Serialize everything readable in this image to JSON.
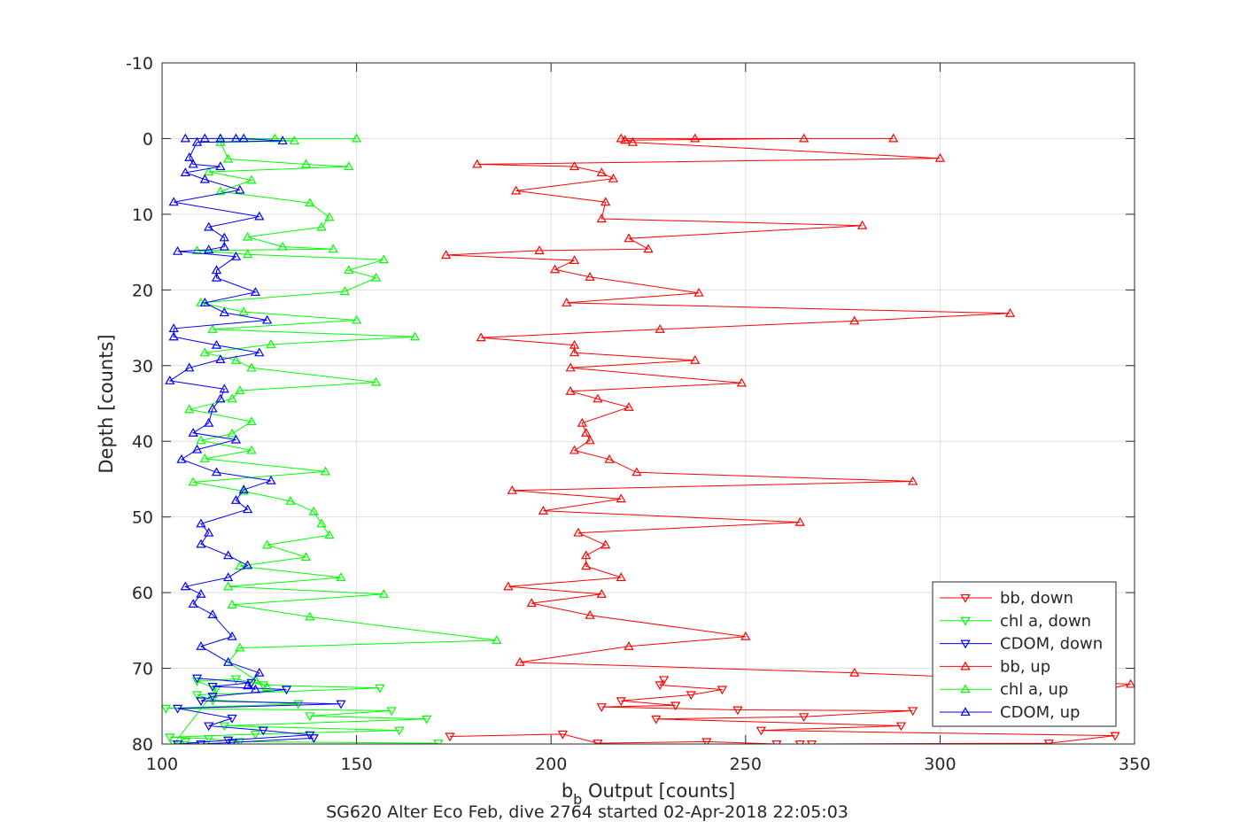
{
  "chart_data": {
    "type": "line",
    "title": "SG620 Alter Eco Feb, dive 2764 started 02-Apr-2018 22:05:03",
    "xlabel_main": "b",
    "xlabel_sub": "b",
    "xlabel_rest": " Output [counts]",
    "ylabel": "Depth [counts]",
    "xlim": [
      100,
      350
    ],
    "ylim": [
      -10,
      80
    ],
    "y_reversed": true,
    "xticks": [
      100,
      150,
      200,
      250,
      300,
      350
    ],
    "yticks": [
      -10,
      0,
      10,
      20,
      30,
      40,
      50,
      60,
      70,
      80
    ],
    "grid": true,
    "legend_position": "bottom-right",
    "colors": {
      "red": "#ff0000",
      "green": "#00ff00",
      "blue": "#0000ff",
      "axis": "#262626",
      "grid": "#e0e0e0"
    },
    "series": [
      {
        "name": "bb, down",
        "color": "#ff0000",
        "marker": "triangle-down",
        "points": [
          [
            174,
            79
          ],
          [
            203,
            78.7
          ],
          [
            212,
            79.9
          ],
          [
            240,
            79.7
          ],
          [
            258,
            80
          ],
          [
            264,
            80
          ],
          [
            267,
            80
          ],
          [
            328,
            79.9
          ],
          [
            345,
            78.9
          ],
          [
            254,
            78.2
          ],
          [
            290,
            77.6
          ],
          [
            227,
            76.7
          ],
          [
            265,
            76.4
          ],
          [
            293,
            75.6
          ],
          [
            248,
            75.5
          ],
          [
            213,
            75.1
          ],
          [
            232,
            74.9
          ],
          [
            218,
            74.3
          ],
          [
            236,
            73.5
          ],
          [
            244,
            72.8
          ],
          [
            228,
            72.2
          ],
          [
            229,
            71.5
          ]
        ]
      },
      {
        "name": "chl a, down",
        "color": "#00ff00",
        "marker": "triangle-down",
        "points": [
          [
            171,
            79.9
          ],
          [
            120,
            79.7
          ],
          [
            112,
            79.3
          ],
          [
            102,
            79.1
          ],
          [
            124,
            78.7
          ],
          [
            161,
            78.2
          ],
          [
            116,
            77.6
          ],
          [
            168,
            76.7
          ],
          [
            138,
            76.3
          ],
          [
            159,
            75.6
          ],
          [
            101,
            75.3
          ],
          [
            135,
            74.7
          ],
          [
            113,
            74.2
          ],
          [
            109,
            73.5
          ],
          [
            156,
            72.6
          ],
          [
            126,
            72.2
          ],
          [
            119,
            71.4
          ],
          [
            109,
            71.7
          ],
          [
            114,
            72.7
          ],
          [
            103,
            80
          ],
          [
            106,
            79.7
          ],
          [
            110,
            80
          ]
        ]
      },
      {
        "name": "CDOM, down",
        "color": "#0000ff",
        "marker": "triangle-down",
        "points": [
          [
            139,
            79.2
          ],
          [
            118,
            79.8
          ],
          [
            110,
            80
          ],
          [
            104,
            80
          ],
          [
            117,
            79.5
          ],
          [
            138,
            78.8
          ],
          [
            126,
            78.2
          ],
          [
            112,
            77.6
          ],
          [
            118,
            76.6
          ],
          [
            104,
            75.3
          ],
          [
            146,
            74.7
          ],
          [
            110,
            74.3
          ],
          [
            113,
            73.7
          ],
          [
            132,
            72.8
          ],
          [
            113,
            72.4
          ],
          [
            123,
            71.9
          ],
          [
            109,
            71.3
          ]
        ]
      },
      {
        "name": "bb, up",
        "color": "#ff0000",
        "marker": "triangle-up",
        "points": [
          [
            288,
            0
          ],
          [
            218,
            0
          ],
          [
            237,
            0
          ],
          [
            265,
            0
          ],
          [
            219,
            0.2
          ],
          [
            221,
            0.5
          ],
          [
            300,
            2.6
          ],
          [
            181,
            3.4
          ],
          [
            206,
            3.7
          ],
          [
            213,
            4.5
          ],
          [
            216,
            5.3
          ],
          [
            191,
            6.9
          ],
          [
            214,
            8.4
          ],
          [
            213,
            10.6
          ],
          [
            280,
            11.5
          ],
          [
            220,
            13.2
          ],
          [
            225,
            14.6
          ],
          [
            197,
            14.8
          ],
          [
            173,
            15.4
          ],
          [
            206,
            16.1
          ],
          [
            201,
            17.3
          ],
          [
            210,
            18.3
          ],
          [
            238,
            20.4
          ],
          [
            204,
            21.7
          ],
          [
            318,
            23.1
          ],
          [
            278,
            24.1
          ],
          [
            228,
            25.2
          ],
          [
            182,
            26.3
          ],
          [
            206,
            27.3
          ],
          [
            206,
            28.3
          ],
          [
            237,
            29.3
          ],
          [
            205,
            30.3
          ],
          [
            249,
            32.3
          ],
          [
            205,
            33.4
          ],
          [
            212,
            34.4
          ],
          [
            220,
            35.5
          ],
          [
            208,
            37.6
          ],
          [
            209,
            38.9
          ],
          [
            210,
            39.9
          ],
          [
            206,
            41.2
          ],
          [
            215,
            42.4
          ],
          [
            222,
            44.1
          ],
          [
            293,
            45.3
          ],
          [
            190,
            46.5
          ],
          [
            218,
            47.6
          ],
          [
            198,
            49.2
          ],
          [
            264,
            50.7
          ],
          [
            207,
            52.1
          ],
          [
            214,
            53.7
          ],
          [
            209,
            55.1
          ],
          [
            209,
            56.5
          ],
          [
            218,
            58
          ],
          [
            189,
            59.2
          ],
          [
            213,
            60.2
          ],
          [
            195,
            61.4
          ],
          [
            210,
            63
          ],
          [
            250,
            65.8
          ],
          [
            220,
            67.1
          ],
          [
            192,
            69.2
          ],
          [
            278,
            70.6
          ],
          [
            349,
            72.1
          ],
          [
            315,
            75.8
          ]
        ]
      },
      {
        "name": "chl a, up",
        "color": "#00ff00",
        "marker": "triangle-up",
        "points": [
          [
            150,
            0
          ],
          [
            129,
            0
          ],
          [
            115,
            0
          ],
          [
            134,
            0.3
          ],
          [
            115,
            0.5
          ],
          [
            117,
            2.7
          ],
          [
            137,
            3.4
          ],
          [
            148,
            3.7
          ],
          [
            112,
            4.4
          ],
          [
            123,
            5.5
          ],
          [
            115,
            7
          ],
          [
            138,
            8.5
          ],
          [
            143,
            10.4
          ],
          [
            141,
            11.7
          ],
          [
            122,
            13
          ],
          [
            131,
            14.3
          ],
          [
            144,
            14.6
          ],
          [
            109,
            14.8
          ],
          [
            122,
            15.3
          ],
          [
            157,
            16
          ],
          [
            148,
            17.4
          ],
          [
            155,
            18.4
          ],
          [
            147,
            20.2
          ],
          [
            110,
            21.7
          ],
          [
            121,
            22.9
          ],
          [
            150,
            24
          ],
          [
            113,
            25.2
          ],
          [
            165,
            26.2
          ],
          [
            128,
            27.2
          ],
          [
            111,
            28.3
          ],
          [
            119,
            29.3
          ],
          [
            123,
            30.3
          ],
          [
            155,
            32.2
          ],
          [
            120,
            33.3
          ],
          [
            118,
            34.4
          ],
          [
            107,
            35.8
          ],
          [
            123,
            37.4
          ],
          [
            118,
            39
          ],
          [
            110,
            39.9
          ],
          [
            123,
            41.2
          ],
          [
            111,
            42.3
          ],
          [
            142,
            44
          ],
          [
            108,
            45.4
          ],
          [
            121,
            46.6
          ],
          [
            133,
            47.9
          ],
          [
            139,
            49.3
          ],
          [
            141,
            50.9
          ],
          [
            143,
            52.4
          ],
          [
            127,
            53.7
          ],
          [
            137,
            55.3
          ],
          [
            120,
            56.5
          ],
          [
            146,
            58
          ],
          [
            117,
            59.2
          ],
          [
            157,
            60.2
          ],
          [
            118,
            61.6
          ],
          [
            138,
            63.2
          ],
          [
            186,
            66.3
          ],
          [
            120,
            67.3
          ],
          [
            117,
            69.2
          ],
          [
            124,
            71.5
          ],
          [
            127,
            72.5
          ]
        ]
      },
      {
        "name": "CDOM, up",
        "color": "#0000ff",
        "marker": "triangle-up",
        "points": [
          [
            106,
            0
          ],
          [
            111,
            0
          ],
          [
            115,
            0
          ],
          [
            119,
            0
          ],
          [
            121,
            0
          ],
          [
            131,
            0.3
          ],
          [
            109,
            0.5
          ],
          [
            107,
            2.5
          ],
          [
            108,
            3.4
          ],
          [
            115,
            3.7
          ],
          [
            106,
            4.5
          ],
          [
            111,
            5.4
          ],
          [
            120,
            6.8
          ],
          [
            103,
            8.4
          ],
          [
            125,
            10.3
          ],
          [
            112,
            11.7
          ],
          [
            116,
            13.1
          ],
          [
            116,
            14.3
          ],
          [
            112,
            14.7
          ],
          [
            104,
            14.9
          ],
          [
            119,
            15.6
          ],
          [
            114,
            17.4
          ],
          [
            114,
            18.4
          ],
          [
            124,
            20.3
          ],
          [
            111,
            21.7
          ],
          [
            116,
            23
          ],
          [
            127,
            24
          ],
          [
            103,
            25.1
          ],
          [
            103,
            26.2
          ],
          [
            114,
            27.3
          ],
          [
            125,
            28.3
          ],
          [
            115,
            29.2
          ],
          [
            107,
            30.3
          ],
          [
            102,
            32
          ],
          [
            116,
            33.1
          ],
          [
            115,
            34.4
          ],
          [
            113,
            35.7
          ],
          [
            112,
            37.6
          ],
          [
            108,
            38.9
          ],
          [
            119,
            39.8
          ],
          [
            109,
            41.1
          ],
          [
            105,
            42.4
          ],
          [
            114,
            44.1
          ],
          [
            128,
            45.2
          ],
          [
            121,
            46.4
          ],
          [
            119,
            47.8
          ],
          [
            122,
            49
          ],
          [
            110,
            50.9
          ],
          [
            112,
            52.1
          ],
          [
            110,
            53.6
          ],
          [
            117,
            55.1
          ],
          [
            122,
            56.4
          ],
          [
            117,
            58
          ],
          [
            106,
            59.2
          ],
          [
            110,
            60.2
          ],
          [
            108,
            61.5
          ],
          [
            113,
            62.9
          ],
          [
            118,
            65.8
          ],
          [
            110,
            67.1
          ],
          [
            117,
            69.2
          ],
          [
            125,
            70.6
          ],
          [
            122,
            72.3
          ],
          [
            124,
            72.8
          ]
        ]
      }
    ]
  }
}
